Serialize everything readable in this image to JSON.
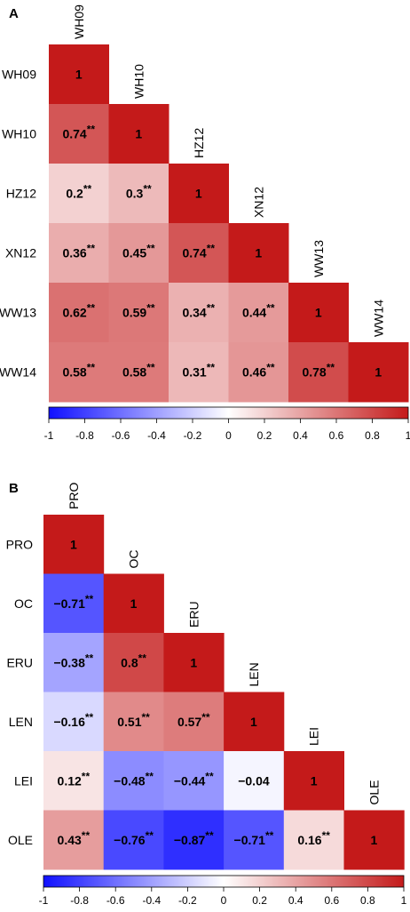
{
  "chart_data": [
    {
      "type": "heatmap",
      "panel": "A",
      "variables": [
        "WH09",
        "WH10",
        "HZ12",
        "XN12",
        "WW13",
        "WW14"
      ],
      "cells": [
        {
          "row": 0,
          "col": 0,
          "value": 1,
          "label": "1",
          "sig": ""
        },
        {
          "row": 1,
          "col": 0,
          "value": 0.74,
          "label": "0.74",
          "sig": "**"
        },
        {
          "row": 1,
          "col": 1,
          "value": 1,
          "label": "1",
          "sig": ""
        },
        {
          "row": 2,
          "col": 0,
          "value": 0.2,
          "label": "0.2",
          "sig": "**"
        },
        {
          "row": 2,
          "col": 1,
          "value": 0.3,
          "label": "0.3",
          "sig": "**"
        },
        {
          "row": 2,
          "col": 2,
          "value": 1,
          "label": "1",
          "sig": ""
        },
        {
          "row": 3,
          "col": 0,
          "value": 0.36,
          "label": "0.36",
          "sig": "**"
        },
        {
          "row": 3,
          "col": 1,
          "value": 0.45,
          "label": "0.45",
          "sig": "**"
        },
        {
          "row": 3,
          "col": 2,
          "value": 0.74,
          "label": "0.74",
          "sig": "**"
        },
        {
          "row": 3,
          "col": 3,
          "value": 1,
          "label": "1",
          "sig": ""
        },
        {
          "row": 4,
          "col": 0,
          "value": 0.62,
          "label": "0.62",
          "sig": "**"
        },
        {
          "row": 4,
          "col": 1,
          "value": 0.59,
          "label": "0.59",
          "sig": "**"
        },
        {
          "row": 4,
          "col": 2,
          "value": 0.34,
          "label": "0.34",
          "sig": "**"
        },
        {
          "row": 4,
          "col": 3,
          "value": 0.44,
          "label": "0.44",
          "sig": "**"
        },
        {
          "row": 4,
          "col": 4,
          "value": 1,
          "label": "1",
          "sig": ""
        },
        {
          "row": 5,
          "col": 0,
          "value": 0.58,
          "label": "0.58",
          "sig": "**"
        },
        {
          "row": 5,
          "col": 1,
          "value": 0.58,
          "label": "0.58",
          "sig": "**"
        },
        {
          "row": 5,
          "col": 2,
          "value": 0.31,
          "label": "0.31",
          "sig": "**"
        },
        {
          "row": 5,
          "col": 3,
          "value": 0.46,
          "label": "0.46",
          "sig": "**"
        },
        {
          "row": 5,
          "col": 4,
          "value": 0.78,
          "label": "0.78",
          "sig": "**"
        },
        {
          "row": 5,
          "col": 5,
          "value": 1,
          "label": "1",
          "sig": ""
        }
      ],
      "color_range": [
        -1,
        1
      ],
      "colorbar_ticks": [
        "-1",
        "-0.8",
        "-0.6",
        "-0.4",
        "-0.2",
        "0",
        "0.2",
        "0.4",
        "0.6",
        "0.8",
        "1"
      ],
      "colors": {
        "negative": "#1010ff",
        "zero": "#ffffff",
        "positive": "#c41a1a"
      }
    },
    {
      "type": "heatmap",
      "panel": "B",
      "variables": [
        "PRO",
        "OC",
        "ERU",
        "LEN",
        "LEI",
        "OLE"
      ],
      "cells": [
        {
          "row": 0,
          "col": 0,
          "value": 1,
          "label": "1",
          "sig": ""
        },
        {
          "row": 1,
          "col": 0,
          "value": -0.71,
          "label": "−0.71",
          "sig": "**"
        },
        {
          "row": 1,
          "col": 1,
          "value": 1,
          "label": "1",
          "sig": ""
        },
        {
          "row": 2,
          "col": 0,
          "value": -0.38,
          "label": "−0.38",
          "sig": "**"
        },
        {
          "row": 2,
          "col": 1,
          "value": 0.8,
          "label": "0.8",
          "sig": "**"
        },
        {
          "row": 2,
          "col": 2,
          "value": 1,
          "label": "1",
          "sig": ""
        },
        {
          "row": 3,
          "col": 0,
          "value": -0.16,
          "label": "−0.16",
          "sig": "**"
        },
        {
          "row": 3,
          "col": 1,
          "value": 0.51,
          "label": "0.51",
          "sig": "**"
        },
        {
          "row": 3,
          "col": 2,
          "value": 0.57,
          "label": "0.57",
          "sig": "**"
        },
        {
          "row": 3,
          "col": 3,
          "value": 1,
          "label": "1",
          "sig": ""
        },
        {
          "row": 4,
          "col": 0,
          "value": 0.12,
          "label": "0.12",
          "sig": "**"
        },
        {
          "row": 4,
          "col": 1,
          "value": -0.48,
          "label": "−0.48",
          "sig": "**"
        },
        {
          "row": 4,
          "col": 2,
          "value": -0.44,
          "label": "−0.44",
          "sig": "**"
        },
        {
          "row": 4,
          "col": 3,
          "value": -0.04,
          "label": "−0.04",
          "sig": ""
        },
        {
          "row": 4,
          "col": 4,
          "value": 1,
          "label": "1",
          "sig": ""
        },
        {
          "row": 5,
          "col": 0,
          "value": 0.43,
          "label": "0.43",
          "sig": "**"
        },
        {
          "row": 5,
          "col": 1,
          "value": -0.76,
          "label": "−0.76",
          "sig": "**"
        },
        {
          "row": 5,
          "col": 2,
          "value": -0.87,
          "label": "−0.87",
          "sig": "**"
        },
        {
          "row": 5,
          "col": 3,
          "value": -0.71,
          "label": "−0.71",
          "sig": "**"
        },
        {
          "row": 5,
          "col": 4,
          "value": 0.16,
          "label": "0.16",
          "sig": "**"
        },
        {
          "row": 5,
          "col": 5,
          "value": 1,
          "label": "1",
          "sig": ""
        }
      ],
      "color_range": [
        -1,
        1
      ],
      "colorbar_ticks": [
        "-1",
        "-0.8",
        "-0.6",
        "-0.4",
        "-0.2",
        "0",
        "0.2",
        "0.4",
        "0.6",
        "0.8",
        "1"
      ],
      "colors": {
        "negative": "#1010ff",
        "zero": "#ffffff",
        "positive": "#c41a1a"
      }
    }
  ]
}
